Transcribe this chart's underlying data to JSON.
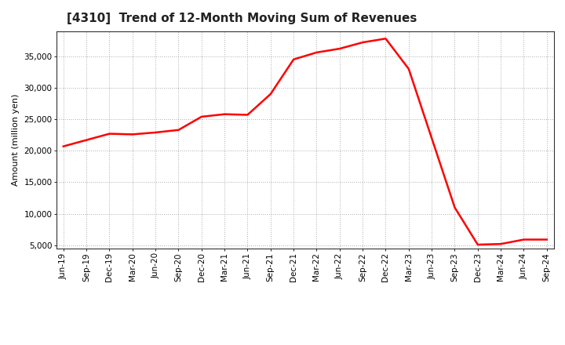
{
  "title": "[4310]  Trend of 12-Month Moving Sum of Revenues",
  "ylabel": "Amount (million yen)",
  "line_color": "#ff0000",
  "line_width": 1.8,
  "background_color": "#ffffff",
  "grid_color": "#999999",
  "labels": [
    "Jun-19",
    "Sep-19",
    "Dec-19",
    "Mar-20",
    "Jun-20",
    "Sep-20",
    "Dec-20",
    "Mar-21",
    "Jun-21",
    "Sep-21",
    "Dec-21",
    "Mar-22",
    "Jun-22",
    "Sep-22",
    "Dec-22",
    "Mar-23",
    "Jun-23",
    "Sep-23",
    "Dec-23",
    "Mar-24",
    "Jun-24",
    "Sep-24"
  ],
  "values": [
    20700,
    21700,
    22700,
    22600,
    22900,
    23300,
    25400,
    25800,
    25700,
    29000,
    34500,
    35600,
    36200,
    37200,
    37800,
    33000,
    22000,
    11000,
    5100,
    5200,
    5900,
    5900
  ],
  "yticks": [
    5000,
    10000,
    15000,
    20000,
    25000,
    30000,
    35000
  ],
  "ylim": [
    4500,
    39000
  ],
  "title_fontsize": 11,
  "ylabel_fontsize": 8,
  "tick_fontsize": 7.5
}
